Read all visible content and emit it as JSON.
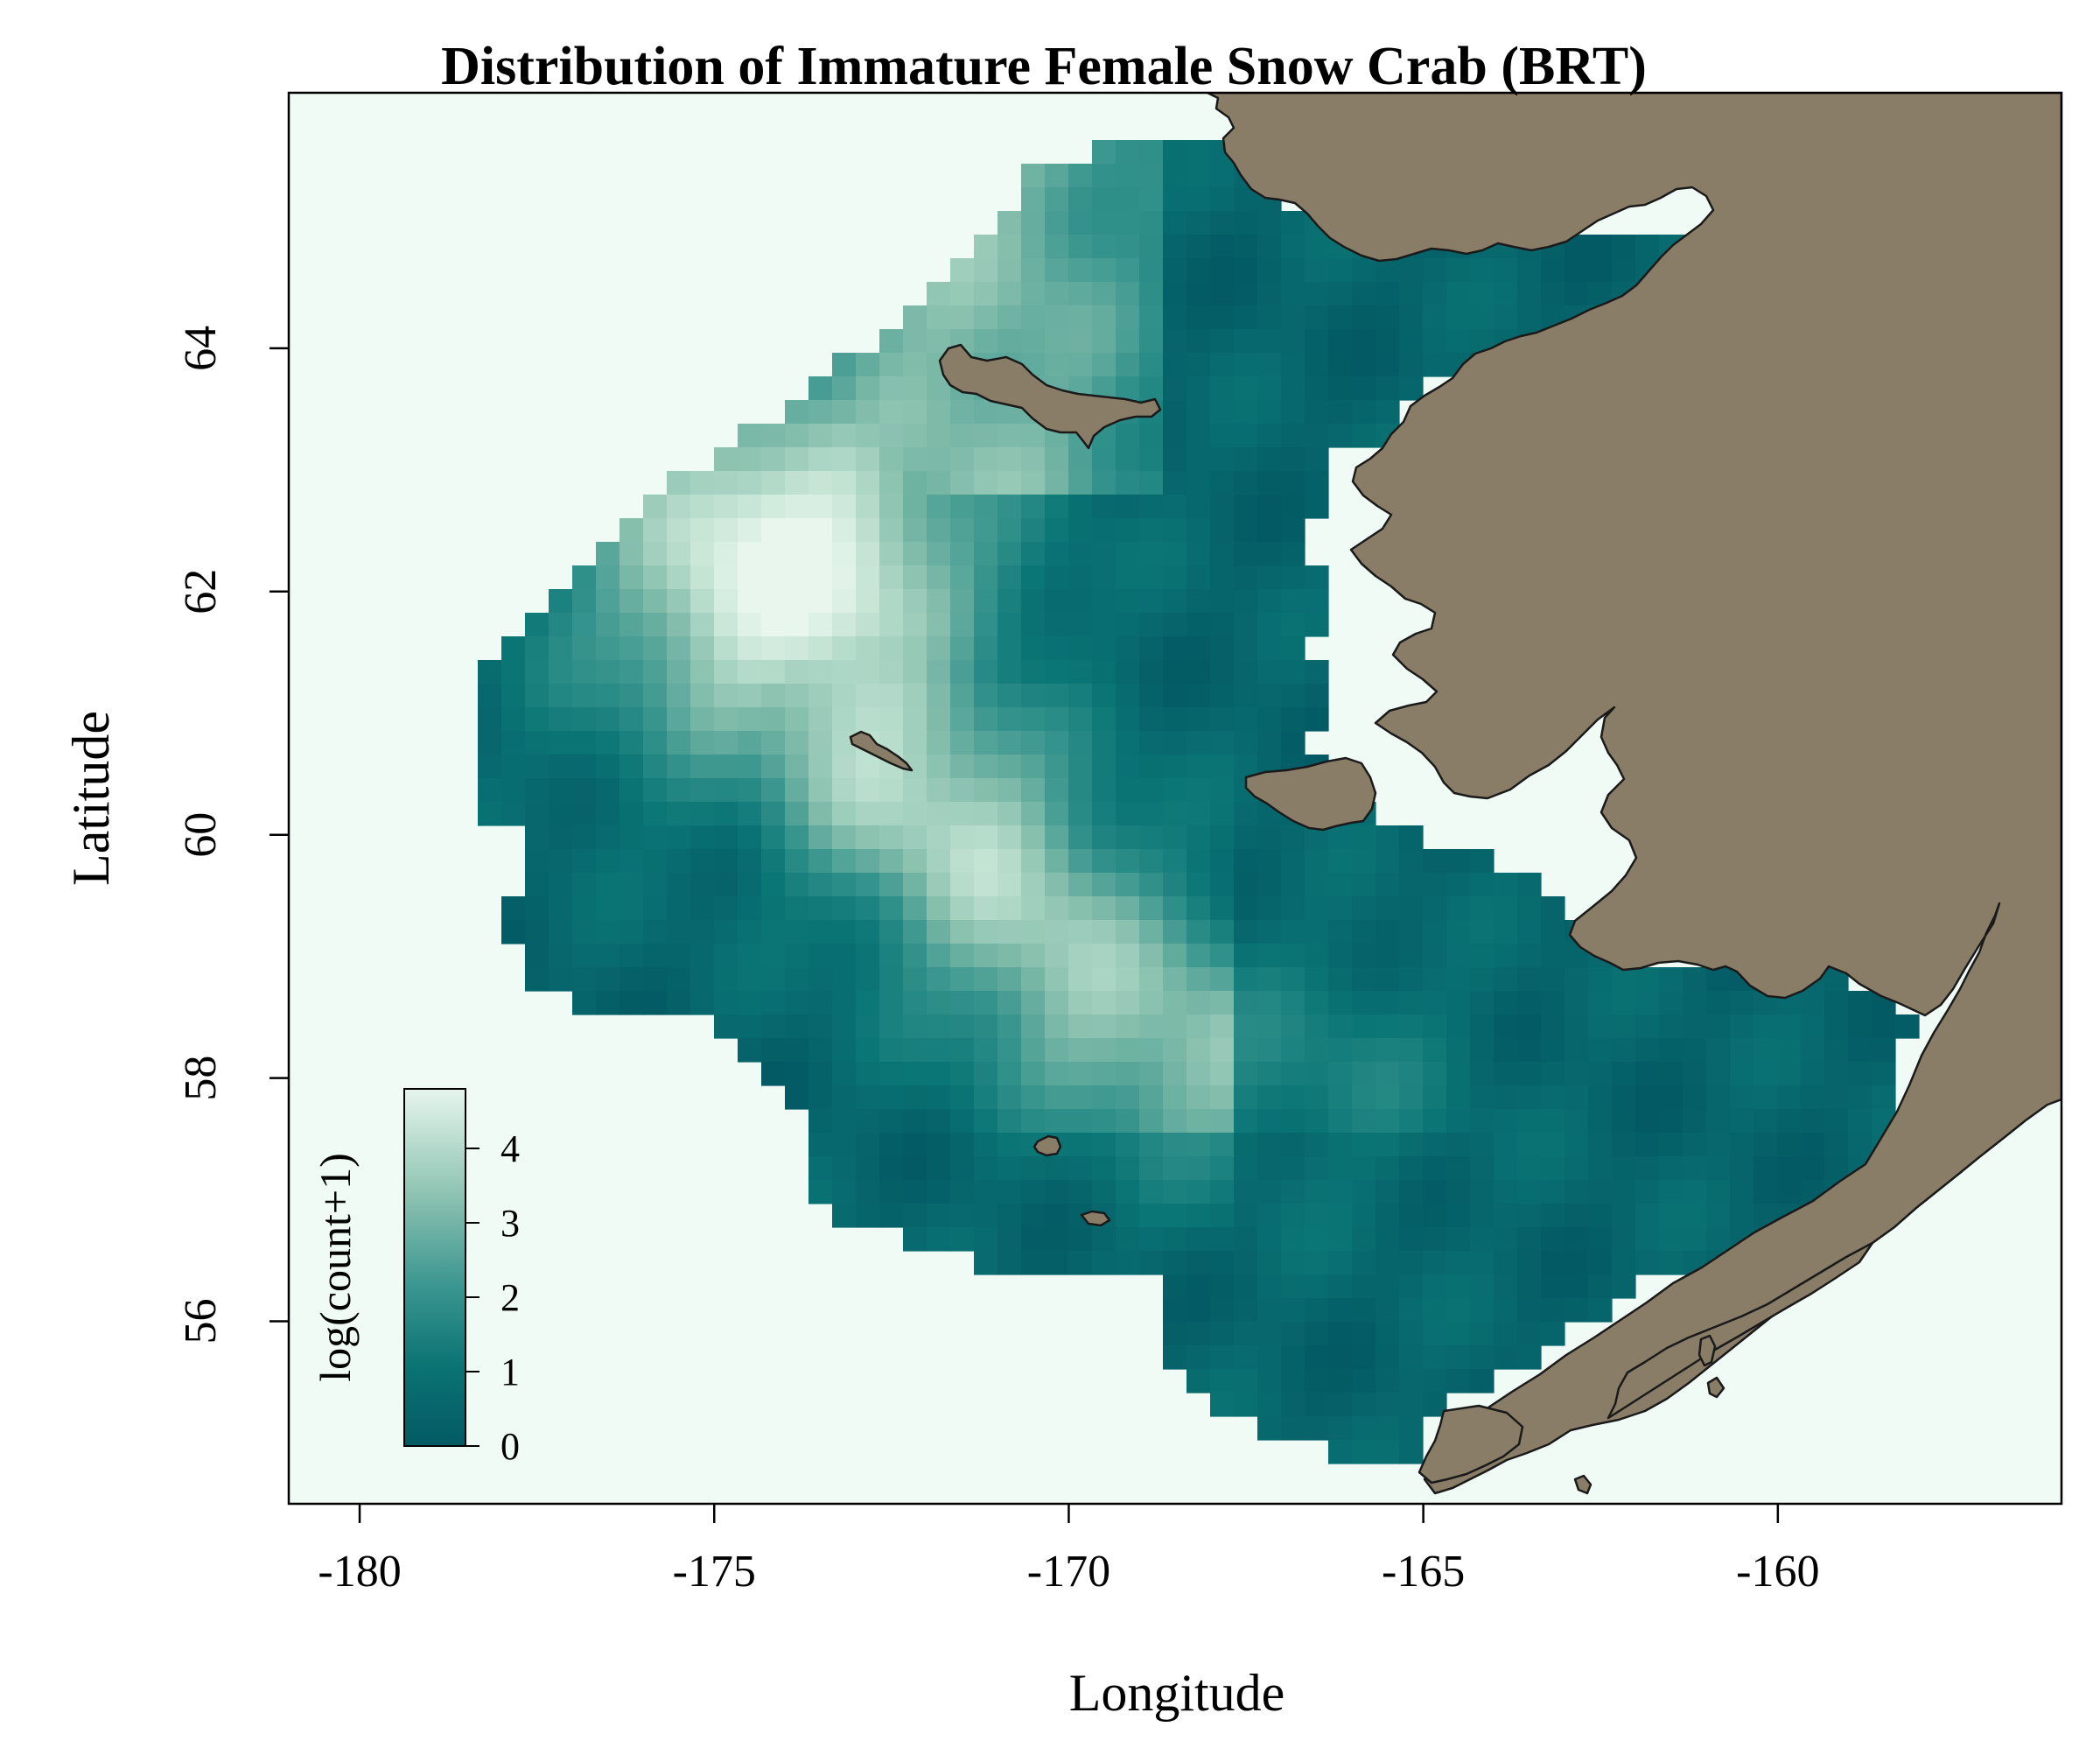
{
  "chart_data": {
    "type": "heatmap",
    "title": "Distribution of Immature Female Snow Crab (BRT)",
    "xlabel": "Longitude",
    "ylabel": "Latitude",
    "x_ticks": [
      "-180",
      "-175",
      "-170",
      "-165",
      "-160"
    ],
    "y_ticks": [
      "56",
      "58",
      "60",
      "62",
      "64"
    ],
    "xlim": [
      -181,
      -156
    ],
    "ylim": [
      54.5,
      66.1
    ],
    "legend": {
      "title": "log(count+1)",
      "ticks": [
        "0",
        "1",
        "2",
        "3",
        "4"
      ],
      "range": [
        0,
        4.8
      ],
      "placement": "bottom-left"
    },
    "colors": {
      "background": "#f1fbf6",
      "land": "#8a7d67",
      "low": "#035a64",
      "mid": "#0e7b7a",
      "high": "#e3f3ea"
    },
    "grid": false
  }
}
